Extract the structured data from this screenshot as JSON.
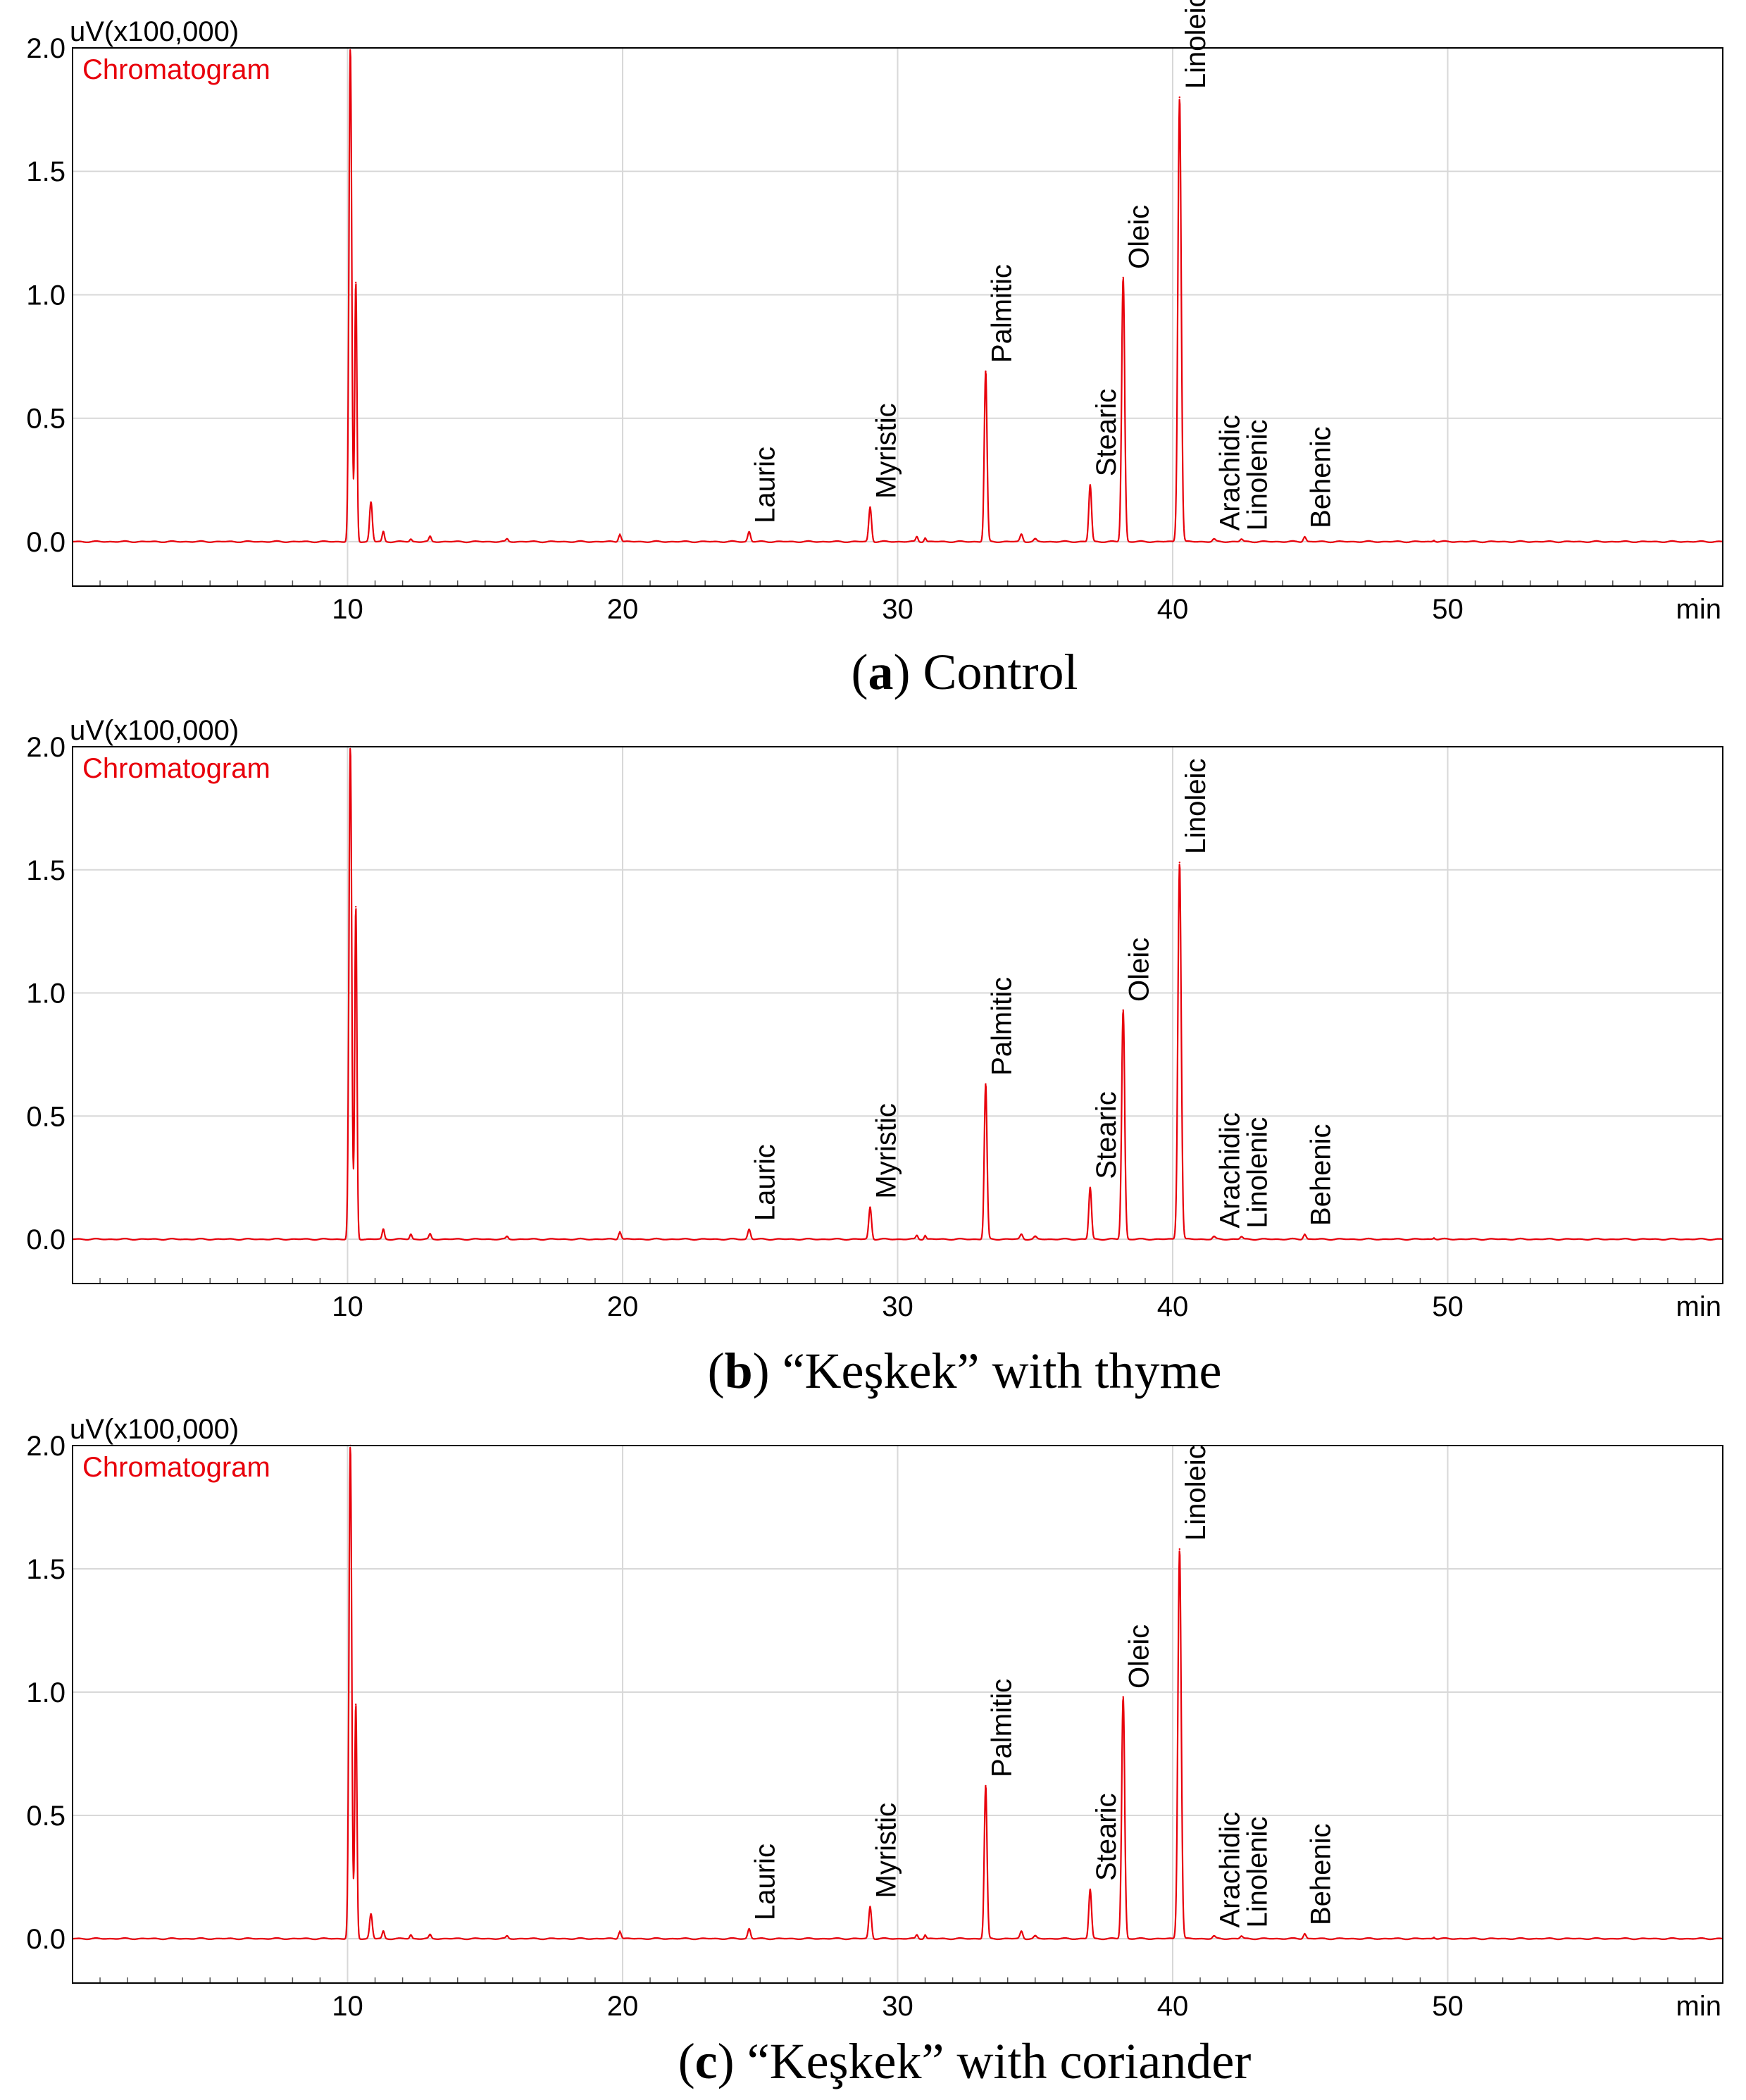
{
  "figure": {
    "colors": {
      "trace": "#e8000b",
      "grid": "#d8d8d8",
      "frame": "#000000"
    }
  },
  "chart_data": [
    {
      "type": "line",
      "panel_label": "a",
      "caption": "Control",
      "y_unit_label": "uV(x100,000)",
      "legend": "Chromatogram",
      "xlabel": "min",
      "ylabel": "",
      "xlim": [
        0,
        60
      ],
      "ylim": [
        -0.18,
        2.0
      ],
      "x_ticks": [
        10,
        20,
        30,
        40,
        50
      ],
      "y_ticks": [
        "0.0",
        "0.5",
        "1.0",
        "1.5",
        "2.0"
      ],
      "grid": true,
      "peaks": [
        {
          "rt": 10.1,
          "height": 2.0,
          "width": 0.05
        },
        {
          "rt": 10.3,
          "height": 1.05,
          "width": 0.04
        },
        {
          "rt": 10.85,
          "height": 0.16,
          "width": 0.05
        },
        {
          "rt": 11.3,
          "height": 0.04,
          "width": 0.04
        },
        {
          "rt": 12.3,
          "height": 0.01,
          "width": 0.04
        },
        {
          "rt": 13.0,
          "height": 0.02,
          "width": 0.04
        },
        {
          "rt": 15.8,
          "height": 0.01,
          "width": 0.04
        },
        {
          "rt": 19.9,
          "height": 0.03,
          "width": 0.05
        },
        {
          "rt": 24.6,
          "height": 0.04,
          "width": 0.05,
          "name": "Lauric"
        },
        {
          "rt": 29.0,
          "height": 0.14,
          "width": 0.05,
          "name": "Myristic"
        },
        {
          "rt": 30.7,
          "height": 0.02,
          "width": 0.04
        },
        {
          "rt": 31.0,
          "height": 0.015,
          "width": 0.04
        },
        {
          "rt": 33.2,
          "height": 0.69,
          "width": 0.05,
          "name": "Palmitic"
        },
        {
          "rt": 34.5,
          "height": 0.03,
          "width": 0.05
        },
        {
          "rt": 35.0,
          "height": 0.01,
          "width": 0.05
        },
        {
          "rt": 37.0,
          "height": 0.23,
          "width": 0.05,
          "name": "Stearic"
        },
        {
          "rt": 38.2,
          "height": 1.07,
          "width": 0.055,
          "name": "Oleic"
        },
        {
          "rt": 40.25,
          "height": 1.8,
          "width": 0.06,
          "name": "Linoleic"
        },
        {
          "rt": 41.5,
          "height": 0.01,
          "width": 0.05,
          "name": "Arachidic"
        },
        {
          "rt": 42.5,
          "height": 0.01,
          "width": 0.05,
          "name": "Linolenic"
        },
        {
          "rt": 44.8,
          "height": 0.02,
          "width": 0.05,
          "name": "Behenic"
        },
        {
          "rt": 49.5,
          "height": 0.005,
          "width": 0.05
        }
      ]
    },
    {
      "type": "line",
      "panel_label": "b",
      "caption": "“Keşkek” with thyme",
      "y_unit_label": "uV(x100,000)",
      "legend": "Chromatogram",
      "xlabel": "min",
      "ylabel": "",
      "xlim": [
        0,
        60
      ],
      "ylim": [
        -0.18,
        2.0
      ],
      "x_ticks": [
        10,
        20,
        30,
        40,
        50
      ],
      "y_ticks": [
        "0.0",
        "0.5",
        "1.0",
        "1.5",
        "2.0"
      ],
      "grid": true,
      "peaks": [
        {
          "rt": 10.1,
          "height": 2.0,
          "width": 0.05
        },
        {
          "rt": 10.3,
          "height": 1.35,
          "width": 0.04
        },
        {
          "rt": 11.3,
          "height": 0.04,
          "width": 0.04
        },
        {
          "rt": 12.3,
          "height": 0.02,
          "width": 0.04
        },
        {
          "rt": 13.0,
          "height": 0.02,
          "width": 0.04
        },
        {
          "rt": 15.8,
          "height": 0.01,
          "width": 0.04
        },
        {
          "rt": 19.9,
          "height": 0.03,
          "width": 0.05
        },
        {
          "rt": 24.6,
          "height": 0.04,
          "width": 0.05,
          "name": "Lauric"
        },
        {
          "rt": 29.0,
          "height": 0.13,
          "width": 0.05,
          "name": "Myristic"
        },
        {
          "rt": 30.7,
          "height": 0.015,
          "width": 0.04
        },
        {
          "rt": 31.0,
          "height": 0.015,
          "width": 0.04
        },
        {
          "rt": 33.2,
          "height": 0.63,
          "width": 0.05,
          "name": "Palmitic"
        },
        {
          "rt": 34.5,
          "height": 0.02,
          "width": 0.05
        },
        {
          "rt": 35.0,
          "height": 0.01,
          "width": 0.05
        },
        {
          "rt": 37.0,
          "height": 0.21,
          "width": 0.05,
          "name": "Stearic"
        },
        {
          "rt": 38.2,
          "height": 0.93,
          "width": 0.055,
          "name": "Oleic"
        },
        {
          "rt": 40.25,
          "height": 1.53,
          "width": 0.06,
          "name": "Linoleic"
        },
        {
          "rt": 41.5,
          "height": 0.01,
          "width": 0.05,
          "name": "Arachidic"
        },
        {
          "rt": 42.5,
          "height": 0.01,
          "width": 0.05,
          "name": "Linolenic"
        },
        {
          "rt": 44.8,
          "height": 0.02,
          "width": 0.05,
          "name": "Behenic"
        },
        {
          "rt": 49.5,
          "height": 0.005,
          "width": 0.05
        }
      ]
    },
    {
      "type": "line",
      "panel_label": "c",
      "caption": "“Keşkek” with coriander",
      "y_unit_label": "uV(x100,000)",
      "legend": "Chromatogram",
      "xlabel": "min",
      "ylabel": "",
      "xlim": [
        0,
        60
      ],
      "ylim": [
        -0.18,
        2.0
      ],
      "x_ticks": [
        10,
        20,
        30,
        40,
        50
      ],
      "y_ticks": [
        "0.0",
        "0.5",
        "1.0",
        "1.5",
        "2.0"
      ],
      "grid": true,
      "peaks": [
        {
          "rt": 10.1,
          "height": 2.0,
          "width": 0.05
        },
        {
          "rt": 10.3,
          "height": 0.95,
          "width": 0.04
        },
        {
          "rt": 10.85,
          "height": 0.1,
          "width": 0.05
        },
        {
          "rt": 11.3,
          "height": 0.03,
          "width": 0.04
        },
        {
          "rt": 12.3,
          "height": 0.015,
          "width": 0.04
        },
        {
          "rt": 13.0,
          "height": 0.015,
          "width": 0.04
        },
        {
          "rt": 15.8,
          "height": 0.01,
          "width": 0.04
        },
        {
          "rt": 19.9,
          "height": 0.03,
          "width": 0.05
        },
        {
          "rt": 24.6,
          "height": 0.04,
          "width": 0.05,
          "name": "Lauric"
        },
        {
          "rt": 29.0,
          "height": 0.13,
          "width": 0.05,
          "name": "Myristic"
        },
        {
          "rt": 30.7,
          "height": 0.015,
          "width": 0.04
        },
        {
          "rt": 31.0,
          "height": 0.015,
          "width": 0.04
        },
        {
          "rt": 33.2,
          "height": 0.62,
          "width": 0.05,
          "name": "Palmitic"
        },
        {
          "rt": 34.5,
          "height": 0.03,
          "width": 0.05
        },
        {
          "rt": 35.0,
          "height": 0.01,
          "width": 0.05
        },
        {
          "rt": 37.0,
          "height": 0.2,
          "width": 0.05,
          "name": "Stearic"
        },
        {
          "rt": 38.2,
          "height": 0.98,
          "width": 0.055,
          "name": "Oleic"
        },
        {
          "rt": 40.25,
          "height": 1.58,
          "width": 0.06,
          "name": "Linoleic"
        },
        {
          "rt": 41.5,
          "height": 0.01,
          "width": 0.05,
          "name": "Arachidic"
        },
        {
          "rt": 42.5,
          "height": 0.01,
          "width": 0.05,
          "name": "Linolenic"
        },
        {
          "rt": 44.8,
          "height": 0.02,
          "width": 0.05,
          "name": "Behenic"
        },
        {
          "rt": 49.5,
          "height": 0.005,
          "width": 0.05
        }
      ]
    }
  ]
}
